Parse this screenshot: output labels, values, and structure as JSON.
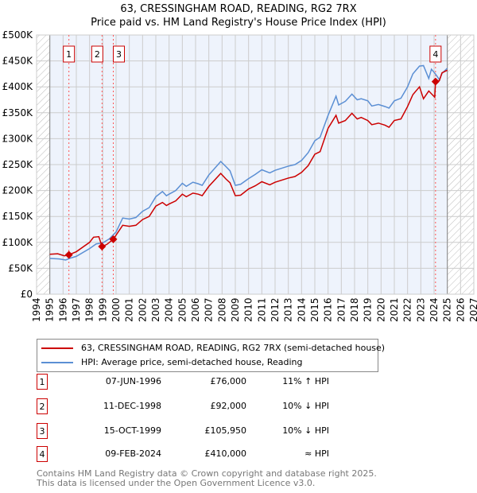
{
  "title": "63, CRESSINGHAM ROAD, READING, RG2 7RX",
  "subtitle": "Price paid vs. HM Land Registry's House Price Index (HPI)",
  "chart_data": {
    "type": "line",
    "xlim": [
      1994,
      2027
    ],
    "ylim": [
      0,
      500000
    ],
    "x_ticks": [
      "1994",
      "1995",
      "1996",
      "1997",
      "1998",
      "1999",
      "2000",
      "2001",
      "2002",
      "2003",
      "2004",
      "2005",
      "2006",
      "2007",
      "2008",
      "2009",
      "2010",
      "2011",
      "2012",
      "2013",
      "2014",
      "2015",
      "2016",
      "2017",
      "2018",
      "2019",
      "2020",
      "2021",
      "2022",
      "2023",
      "2024",
      "2025",
      "2026",
      "2027"
    ],
    "y_ticks": [
      "£0",
      "£50K",
      "£100K",
      "£150K",
      "£200K",
      "£250K",
      "£300K",
      "£350K",
      "£400K",
      "£450K",
      "£500K"
    ],
    "hatched_ranges": [
      [
        1994,
        1995
      ],
      [
        2025,
        2027
      ]
    ],
    "series": [
      {
        "name": "63, CRESSINGHAM ROAD, READING, RG2 7RX (semi-detached house)",
        "color": "#cc0000",
        "points": [
          [
            1995,
            77000
          ],
          [
            1995.6,
            78000
          ],
          [
            1996.1,
            74000
          ],
          [
            1996.44,
            76000
          ],
          [
            1997,
            82000
          ],
          [
            1998,
            100000
          ],
          [
            1998.3,
            110000
          ],
          [
            1998.7,
            111000
          ],
          [
            1998.94,
            92000
          ],
          [
            1999.3,
            96000
          ],
          [
            1999.79,
            105950
          ],
          [
            2000.5,
            133000
          ],
          [
            2001,
            131000
          ],
          [
            2001.5,
            133000
          ],
          [
            2002,
            144000
          ],
          [
            2002.5,
            150000
          ],
          [
            2003,
            170000
          ],
          [
            2003.5,
            177000
          ],
          [
            2003.8,
            171000
          ],
          [
            2004,
            174000
          ],
          [
            2004.5,
            180000
          ],
          [
            2005,
            193000
          ],
          [
            2005.3,
            188000
          ],
          [
            2005.8,
            195000
          ],
          [
            2006.2,
            193000
          ],
          [
            2006.5,
            190000
          ],
          [
            2007,
            208000
          ],
          [
            2007.9,
            233000
          ],
          [
            2008.3,
            222000
          ],
          [
            2008.6,
            215000
          ],
          [
            2009,
            190000
          ],
          [
            2009.4,
            191000
          ],
          [
            2010,
            203000
          ],
          [
            2010.5,
            209000
          ],
          [
            2011,
            217000
          ],
          [
            2011.6,
            211000
          ],
          [
            2012,
            216000
          ],
          [
            2013,
            224000
          ],
          [
            2013.5,
            227000
          ],
          [
            2014,
            235000
          ],
          [
            2014.5,
            248000
          ],
          [
            2015,
            270000
          ],
          [
            2015.4,
            275000
          ],
          [
            2016,
            320000
          ],
          [
            2016.6,
            345000
          ],
          [
            2016.8,
            330000
          ],
          [
            2017.3,
            335000
          ],
          [
            2017.8,
            349000
          ],
          [
            2018.2,
            338000
          ],
          [
            2018.5,
            341000
          ],
          [
            2019,
            335000
          ],
          [
            2019.3,
            327000
          ],
          [
            2019.8,
            330000
          ],
          [
            2020.3,
            326000
          ],
          [
            2020.6,
            322000
          ],
          [
            2021,
            335000
          ],
          [
            2021.5,
            338000
          ],
          [
            2022,
            362000
          ],
          [
            2022.4,
            385000
          ],
          [
            2022.9,
            400000
          ],
          [
            2023.2,
            377000
          ],
          [
            2023.6,
            392000
          ],
          [
            2024.05,
            380000
          ],
          [
            2024.11,
            410000
          ],
          [
            2024.4,
            412000
          ],
          [
            2024.6,
            427000
          ],
          [
            2025,
            432000
          ]
        ]
      },
      {
        "name": "HPI: Average price, semi-detached house, Reading",
        "color": "#5b8fd4",
        "points": [
          [
            1995,
            69000
          ],
          [
            1995.7,
            68000
          ],
          [
            1996.2,
            66000
          ],
          [
            1996.6,
            70000
          ],
          [
            1997,
            73000
          ],
          [
            1998,
            88000
          ],
          [
            1998.5,
            97000
          ],
          [
            1999,
            99000
          ],
          [
            1999.5,
            107000
          ],
          [
            2000,
            120000
          ],
          [
            2000.5,
            147000
          ],
          [
            2001,
            145000
          ],
          [
            2001.5,
            148000
          ],
          [
            2002,
            160000
          ],
          [
            2002.5,
            167000
          ],
          [
            2003,
            188000
          ],
          [
            2003.5,
            198000
          ],
          [
            2003.8,
            190000
          ],
          [
            2004,
            193000
          ],
          [
            2004.5,
            200000
          ],
          [
            2005,
            214000
          ],
          [
            2005.3,
            208000
          ],
          [
            2005.8,
            216000
          ],
          [
            2006.2,
            213000
          ],
          [
            2006.5,
            210000
          ],
          [
            2007,
            230000
          ],
          [
            2007.9,
            256000
          ],
          [
            2008.3,
            246000
          ],
          [
            2008.6,
            238000
          ],
          [
            2009,
            210000
          ],
          [
            2009.4,
            212000
          ],
          [
            2010,
            223000
          ],
          [
            2010.5,
            231000
          ],
          [
            2011,
            240000
          ],
          [
            2011.6,
            234000
          ],
          [
            2012,
            239000
          ],
          [
            2013,
            247000
          ],
          [
            2013.5,
            250000
          ],
          [
            2014,
            258000
          ],
          [
            2014.5,
            273000
          ],
          [
            2015,
            296000
          ],
          [
            2015.4,
            303000
          ],
          [
            2016,
            345000
          ],
          [
            2016.6,
            382000
          ],
          [
            2016.8,
            365000
          ],
          [
            2017.3,
            372000
          ],
          [
            2017.8,
            386000
          ],
          [
            2018.2,
            375000
          ],
          [
            2018.5,
            377000
          ],
          [
            2019,
            373000
          ],
          [
            2019.3,
            363000
          ],
          [
            2019.8,
            366000
          ],
          [
            2020.3,
            362000
          ],
          [
            2020.6,
            359000
          ],
          [
            2021,
            373000
          ],
          [
            2021.5,
            378000
          ],
          [
            2022,
            400000
          ],
          [
            2022.4,
            425000
          ],
          [
            2022.9,
            440000
          ],
          [
            2023.2,
            441000
          ],
          [
            2023.6,
            416000
          ],
          [
            2023.8,
            434000
          ],
          [
            2024.1,
            425000
          ],
          [
            2024.4,
            414000
          ],
          [
            2024.6,
            426000
          ],
          [
            2025,
            436000
          ]
        ]
      }
    ],
    "sales": [
      {
        "label": "1",
        "x": 1996.44,
        "value": 76000,
        "date": "07-JUN-1996",
        "price": "£76,000",
        "hpi": "11% ↑ HPI"
      },
      {
        "label": "2",
        "x": 1998.94,
        "value": 92000,
        "date": "11-DEC-1998",
        "price": "£92,000",
        "hpi": "10% ↓ HPI"
      },
      {
        "label": "3",
        "x": 1999.79,
        "value": 105950,
        "date": "15-OCT-1999",
        "price": "£105,950",
        "hpi": "10% ↓ HPI"
      },
      {
        "label": "4",
        "x": 2024.11,
        "value": 410000,
        "date": "09-FEB-2024",
        "price": "£410,000",
        "hpi": "≈ HPI"
      }
    ],
    "legend_position": "below"
  },
  "footer": [
    "Contains HM Land Registry data © Crown copyright and database right 2025.",
    "This data is licensed under the Open Government Licence v3.0."
  ]
}
